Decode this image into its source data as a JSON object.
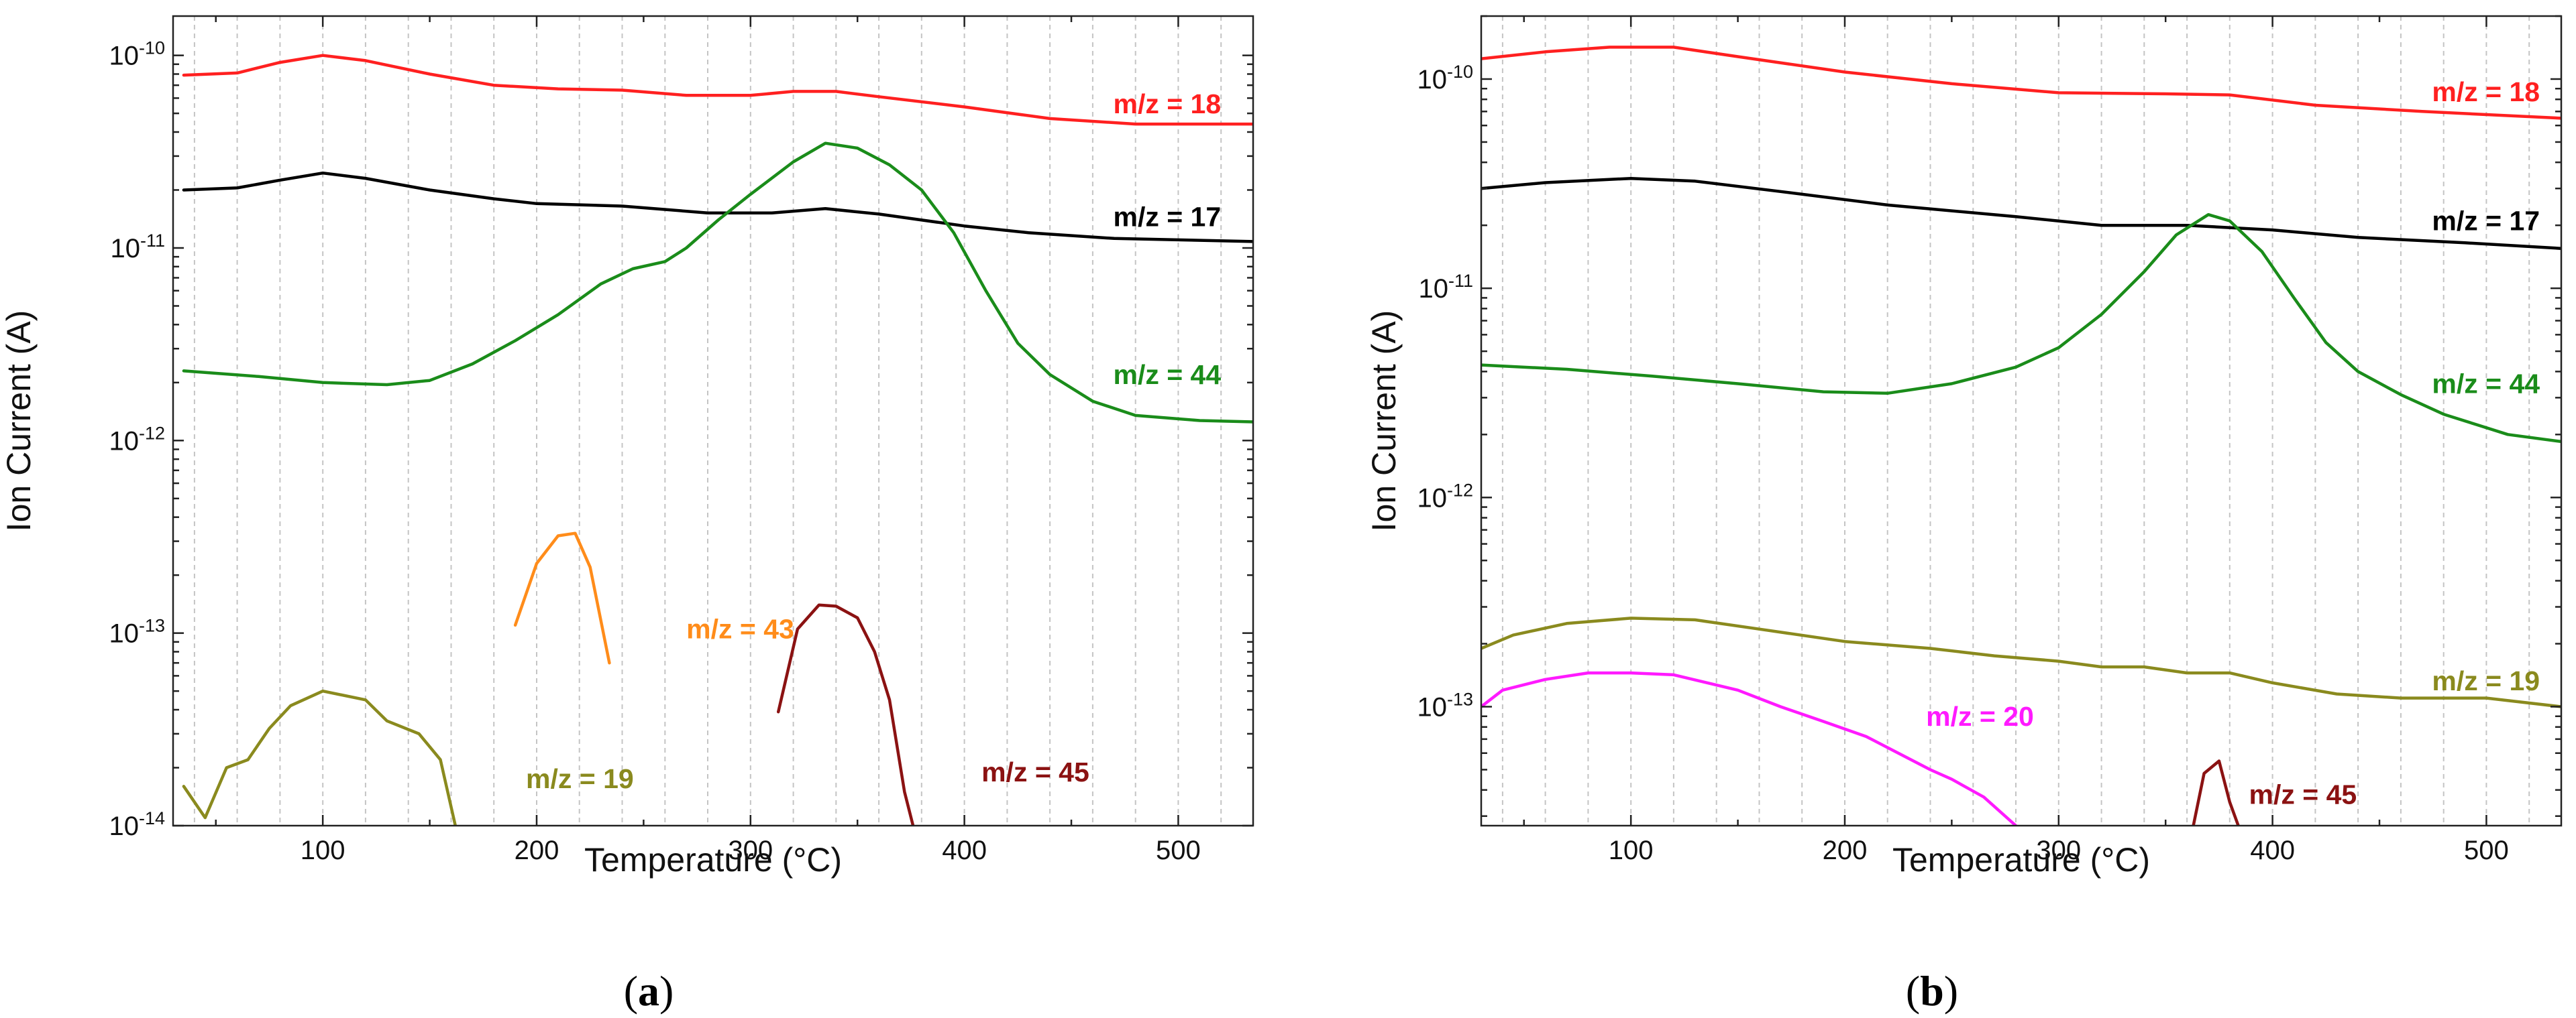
{
  "chart_data": [
    {
      "type": "line",
      "panel_label": "a",
      "xlabel": "Temperature (°C)",
      "ylabel": "Ion Current (A)",
      "xlim": [
        30,
        535
      ],
      "ylim": [
        1e-14,
        1.6e-10
      ],
      "yscale": "log",
      "grid": "vertical-dashed",
      "xticks": [
        {
          "value": 100,
          "label": "100"
        },
        {
          "value": 200,
          "label": "200"
        },
        {
          "value": 300,
          "label": "300"
        },
        {
          "value": 400,
          "label": "400"
        },
        {
          "value": 500,
          "label": "500"
        }
      ],
      "yticks": [
        {
          "value": 1e-14,
          "base": "10",
          "exp": "-14"
        },
        {
          "value": 1e-13,
          "base": "10",
          "exp": "-13"
        },
        {
          "value": 1e-12,
          "base": "10",
          "exp": "-12"
        },
        {
          "value": 1e-11,
          "base": "10",
          "exp": "-11"
        },
        {
          "value": 1e-10,
          "base": "10",
          "exp": "-10"
        }
      ],
      "series": [
        {
          "name": "m/z = 18",
          "color": "#ff2020",
          "points": [
            [
              35,
              7.9e-11
            ],
            [
              60,
              8.1e-11
            ],
            [
              80,
              9.2e-11
            ],
            [
              100,
              1e-10
            ],
            [
              120,
              9.4e-11
            ],
            [
              150,
              8e-11
            ],
            [
              180,
              7e-11
            ],
            [
              210,
              6.7e-11
            ],
            [
              240,
              6.6e-11
            ],
            [
              270,
              6.2e-11
            ],
            [
              300,
              6.2e-11
            ],
            [
              320,
              6.5e-11
            ],
            [
              340,
              6.5e-11
            ],
            [
              360,
              6.1e-11
            ],
            [
              400,
              5.4e-11
            ],
            [
              440,
              4.7e-11
            ],
            [
              480,
              4.4e-11
            ],
            [
              535,
              4.4e-11
            ]
          ],
          "label_at": [
            520,
            5.6e-11
          ]
        },
        {
          "name": "m/z = 17",
          "color": "#000000",
          "points": [
            [
              35,
              2e-11
            ],
            [
              60,
              2.05e-11
            ],
            [
              80,
              2.25e-11
            ],
            [
              100,
              2.45e-11
            ],
            [
              120,
              2.3e-11
            ],
            [
              150,
              2e-11
            ],
            [
              180,
              1.8e-11
            ],
            [
              200,
              1.7e-11
            ],
            [
              240,
              1.65e-11
            ],
            [
              280,
              1.52e-11
            ],
            [
              310,
              1.52e-11
            ],
            [
              335,
              1.6e-11
            ],
            [
              360,
              1.5e-11
            ],
            [
              400,
              1.3e-11
            ],
            [
              430,
              1.2e-11
            ],
            [
              470,
              1.12e-11
            ],
            [
              535,
              1.08e-11
            ]
          ],
          "label_at": [
            520,
            1.45e-11
          ]
        },
        {
          "name": "m/z = 44",
          "color": "#1a8c1a",
          "points": [
            [
              35,
              2.3e-12
            ],
            [
              70,
              2.15e-12
            ],
            [
              100,
              2e-12
            ],
            [
              130,
              1.95e-12
            ],
            [
              150,
              2.05e-12
            ],
            [
              170,
              2.5e-12
            ],
            [
              190,
              3.3e-12
            ],
            [
              210,
              4.5e-12
            ],
            [
              230,
              6.5e-12
            ],
            [
              245,
              7.8e-12
            ],
            [
              260,
              8.5e-12
            ],
            [
              270,
              1e-11
            ],
            [
              285,
              1.4e-11
            ],
            [
              300,
              1.9e-11
            ],
            [
              320,
              2.8e-11
            ],
            [
              335,
              3.5e-11
            ],
            [
              350,
              3.3e-11
            ],
            [
              365,
              2.7e-11
            ],
            [
              380,
              2e-11
            ],
            [
              395,
              1.2e-11
            ],
            [
              410,
              6e-12
            ],
            [
              425,
              3.2e-12
            ],
            [
              440,
              2.2e-12
            ],
            [
              460,
              1.6e-12
            ],
            [
              480,
              1.35e-12
            ],
            [
              510,
              1.27e-12
            ],
            [
              535,
              1.25e-12
            ]
          ],
          "label_at": [
            520,
            2.2e-12
          ]
        },
        {
          "name": "m/z = 43",
          "color": "#ff8c1a",
          "points": [
            [
              190,
              1.1e-13
            ],
            [
              200,
              2.3e-13
            ],
            [
              210,
              3.2e-13
            ],
            [
              218,
              3.3e-13
            ],
            [
              225,
              2.2e-13
            ],
            [
              234,
              7e-14
            ]
          ],
          "label_at": [
            270,
            1.05e-13
          ]
        },
        {
          "name": "m/z = 45",
          "color": "#8b1212",
          "points": [
            [
              313,
              3.9e-14
            ],
            [
              322,
              1.05e-13
            ],
            [
              332,
              1.4e-13
            ],
            [
              340,
              1.38e-13
            ],
            [
              350,
              1.2e-13
            ],
            [
              358,
              8e-14
            ],
            [
              365,
              4.5e-14
            ],
            [
              372,
              1.5e-14
            ],
            [
              376,
              1e-14
            ]
          ],
          "label_at": [
            408,
            1.9e-14
          ]
        },
        {
          "name": "m/z = 19",
          "color": "#8a8a1e",
          "points": [
            [
              35,
              1.6e-14
            ],
            [
              45,
              1.1e-14
            ],
            [
              55,
              2e-14
            ],
            [
              65,
              2.2e-14
            ],
            [
              75,
              3.2e-14
            ],
            [
              85,
              4.2e-14
            ],
            [
              100,
              5e-14
            ],
            [
              120,
              4.5e-14
            ],
            [
              130,
              3.5e-14
            ],
            [
              145,
              3e-14
            ],
            [
              155,
              2.2e-14
            ],
            [
              162,
              1e-14
            ]
          ],
          "label_at": [
            195,
            1.75e-14
          ]
        }
      ]
    },
    {
      "type": "line",
      "panel_label": "b",
      "xlabel": "Temperature (°C)",
      "ylabel": "Ion Current (A)",
      "xlim": [
        30,
        535
      ],
      "ylim": [
        2.7e-14,
        2e-10
      ],
      "yscale": "log",
      "grid": "vertical-dashed",
      "xticks": [
        {
          "value": 100,
          "label": "100"
        },
        {
          "value": 200,
          "label": "200"
        },
        {
          "value": 300,
          "label": "300"
        },
        {
          "value": 400,
          "label": "400"
        },
        {
          "value": 500,
          "label": "500"
        }
      ],
      "yticks": [
        {
          "value": 1e-13,
          "base": "10",
          "exp": "-13"
        },
        {
          "value": 1e-12,
          "base": "10",
          "exp": "-12"
        },
        {
          "value": 1e-11,
          "base": "10",
          "exp": "-11"
        },
        {
          "value": 1e-10,
          "base": "10",
          "exp": "-10"
        }
      ],
      "series": [
        {
          "name": "m/z = 18",
          "color": "#ff2020",
          "points": [
            [
              30,
              1.25e-10
            ],
            [
              60,
              1.35e-10
            ],
            [
              90,
              1.42e-10
            ],
            [
              120,
              1.42e-10
            ],
            [
              150,
              1.28e-10
            ],
            [
              200,
              1.08e-10
            ],
            [
              250,
              9.5e-11
            ],
            [
              300,
              8.6e-11
            ],
            [
              350,
              8.5e-11
            ],
            [
              380,
              8.4e-11
            ],
            [
              420,
              7.5e-11
            ],
            [
              470,
              7e-11
            ],
            [
              535,
              6.5e-11
            ]
          ],
          "label_at": [
            525,
            8.7e-11
          ]
        },
        {
          "name": "m/z = 17",
          "color": "#000000",
          "points": [
            [
              30,
              3e-11
            ],
            [
              60,
              3.2e-11
            ],
            [
              100,
              3.35e-11
            ],
            [
              130,
              3.25e-11
            ],
            [
              170,
              2.9e-11
            ],
            [
              220,
              2.5e-11
            ],
            [
              280,
              2.2e-11
            ],
            [
              320,
              2e-11
            ],
            [
              360,
              2e-11
            ],
            [
              400,
              1.9e-11
            ],
            [
              440,
              1.75e-11
            ],
            [
              490,
              1.65e-11
            ],
            [
              535,
              1.55e-11
            ]
          ],
          "label_at": [
            525,
            2.1e-11
          ]
        },
        {
          "name": "m/z = 44",
          "color": "#1a8c1a",
          "points": [
            [
              30,
              4.3e-12
            ],
            [
              70,
              4.1e-12
            ],
            [
              110,
              3.8e-12
            ],
            [
              150,
              3.5e-12
            ],
            [
              190,
              3.2e-12
            ],
            [
              220,
              3.15e-12
            ],
            [
              250,
              3.5e-12
            ],
            [
              280,
              4.2e-12
            ],
            [
              300,
              5.2e-12
            ],
            [
              320,
              7.5e-12
            ],
            [
              340,
              1.2e-11
            ],
            [
              355,
              1.8e-11
            ],
            [
              370,
              2.25e-11
            ],
            [
              380,
              2.1e-11
            ],
            [
              395,
              1.5e-11
            ],
            [
              410,
              9e-12
            ],
            [
              425,
              5.5e-12
            ],
            [
              440,
              4e-12
            ],
            [
              460,
              3.1e-12
            ],
            [
              480,
              2.5e-12
            ],
            [
              510,
              2e-12
            ],
            [
              535,
              1.85e-12
            ]
          ],
          "label_at": [
            525,
            3.5e-12
          ]
        },
        {
          "name": "m/z = 19",
          "color": "#8a8a1e",
          "points": [
            [
              30,
              1.9e-13
            ],
            [
              45,
              2.2e-13
            ],
            [
              70,
              2.5e-13
            ],
            [
              100,
              2.65e-13
            ],
            [
              130,
              2.6e-13
            ],
            [
              160,
              2.35e-13
            ],
            [
              200,
              2.05e-13
            ],
            [
              240,
              1.9e-13
            ],
            [
              270,
              1.75e-13
            ],
            [
              300,
              1.65e-13
            ],
            [
              320,
              1.55e-13
            ],
            [
              340,
              1.55e-13
            ],
            [
              360,
              1.45e-13
            ],
            [
              380,
              1.45e-13
            ],
            [
              400,
              1.3e-13
            ],
            [
              430,
              1.15e-13
            ],
            [
              460,
              1.1e-13
            ],
            [
              500,
              1.1e-13
            ],
            [
              535,
              1e-13
            ]
          ],
          "label_at": [
            525,
            1.33e-13
          ]
        },
        {
          "name": "m/z = 20",
          "color": "#ff1aff",
          "points": [
            [
              30,
              1e-13
            ],
            [
              40,
              1.2e-13
            ],
            [
              60,
              1.35e-13
            ],
            [
              80,
              1.45e-13
            ],
            [
              100,
              1.45e-13
            ],
            [
              120,
              1.42e-13
            ],
            [
              150,
              1.2e-13
            ],
            [
              170,
              1e-13
            ],
            [
              190,
              8.5e-14
            ],
            [
              210,
              7.2e-14
            ],
            [
              225,
              6e-14
            ],
            [
              240,
              5e-14
            ],
            [
              250,
              4.5e-14
            ],
            [
              265,
              3.7e-14
            ],
            [
              280,
              2.7e-14
            ]
          ],
          "label_at": [
            238,
            9e-14
          ]
        },
        {
          "name": "m/z = 45",
          "color": "#8b1212",
          "points": [
            [
              363,
              2.7e-14
            ],
            [
              368,
              4.8e-14
            ],
            [
              375,
              5.5e-14
            ],
            [
              380,
              3.5e-14
            ],
            [
              384,
              2.7e-14
            ]
          ],
          "label_at": [
            389,
            3.8e-14
          ]
        }
      ]
    }
  ],
  "captions": {
    "a": {
      "open": "(",
      "letter": "a",
      "close": ")"
    },
    "b": {
      "open": "(",
      "letter": "b",
      "close": ")"
    }
  }
}
